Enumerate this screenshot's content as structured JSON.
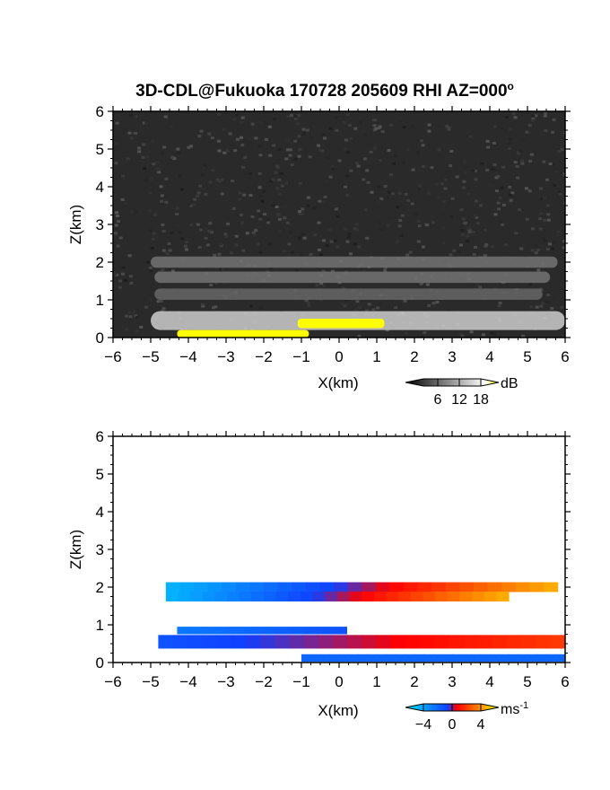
{
  "chart_data": [
    {
      "type": "heatmap",
      "panel": "reflectivity",
      "title": "3D-CDL@Fukuoka 170728 205609 RHI AZ=000",
      "title_sup": "o",
      "xlabel": "X(km)",
      "ylabel": "Z(km)",
      "xlim": [
        -6,
        6
      ],
      "ylim": [
        0,
        6
      ],
      "xticks": [
        "-6",
        "-5",
        "-4",
        "-3",
        "-2",
        "-1",
        "0",
        "1",
        "2",
        "3",
        "4",
        "5",
        "6"
      ],
      "yticks": [
        "0",
        "1",
        "2",
        "3",
        "4",
        "5",
        "6"
      ],
      "background": "#2a2a2a",
      "layers": [
        {
          "z_center": 2.0,
          "z_halfwidth": 0.15,
          "x_range": [
            -5.0,
            5.8
          ],
          "level_db": 9
        },
        {
          "z_center": 1.6,
          "z_halfwidth": 0.15,
          "x_range": [
            -4.9,
            5.6
          ],
          "level_db": 9
        },
        {
          "z_center": 1.15,
          "z_halfwidth": 0.15,
          "x_range": [
            -4.9,
            5.4
          ],
          "level_db": 8
        },
        {
          "z_center": 0.45,
          "z_halfwidth": 0.25,
          "x_range": [
            -5.0,
            6.0
          ],
          "level_db": 16
        }
      ],
      "saturated_regions": [
        {
          "x_range": [
            -1.1,
            1.2
          ],
          "z_range": [
            0.25,
            0.5
          ],
          "level_db": 20
        },
        {
          "x_range": [
            -4.3,
            -0.8
          ],
          "z_range": [
            0.0,
            0.2
          ],
          "level_db": 20
        }
      ],
      "colorbar": {
        "unit": "dB",
        "ticks": [
          "6",
          "12",
          "18"
        ],
        "range": [
          0,
          20
        ],
        "colors": [
          "#000000",
          "#ffffff",
          "#ffff00"
        ]
      }
    },
    {
      "type": "heatmap",
      "panel": "doppler_velocity",
      "xlabel": "X(km)",
      "ylabel": "Z(km)",
      "xlim": [
        -6,
        6
      ],
      "ylim": [
        0,
        6
      ],
      "xticks": [
        "-6",
        "-5",
        "-4",
        "-3",
        "-2",
        "-1",
        "0",
        "1",
        "2",
        "3",
        "4",
        "5",
        "6"
      ],
      "yticks": [
        "0",
        "1",
        "2",
        "3",
        "4",
        "5",
        "6"
      ],
      "background": "#ffffff",
      "layers": [
        {
          "z_center": 2.0,
          "z_halfwidth": 0.13,
          "x_range": [
            -4.6,
            5.8
          ],
          "v_left": -3.5,
          "v_right": 3.5
        },
        {
          "z_center": 1.75,
          "z_halfwidth": 0.13,
          "x_range": [
            -4.6,
            4.5
          ],
          "v_left": -3.5,
          "v_right": 3.5
        },
        {
          "z_center": 0.85,
          "z_halfwidth": 0.1,
          "x_range": [
            -4.3,
            0.2
          ],
          "v_left": -2.0,
          "v_right": -1.0
        },
        {
          "z_center": 0.55,
          "z_halfwidth": 0.18,
          "x_range": [
            -4.8,
            6.0
          ],
          "v_left": -1.0,
          "v_right": 1.5
        },
        {
          "z_center": 0.12,
          "z_halfwidth": 0.1,
          "x_range": [
            -1.0,
            6.0
          ],
          "v_left": -1.5,
          "v_right": -1.5
        }
      ],
      "colorbar": {
        "unit": "ms",
        "unit_sup": "-1",
        "ticks": [
          "-4",
          "0",
          "4"
        ],
        "range": [
          -5,
          5
        ],
        "colors": [
          "#00eaff",
          "#1040ff",
          "#ff0000",
          "#ffff00"
        ]
      }
    }
  ]
}
